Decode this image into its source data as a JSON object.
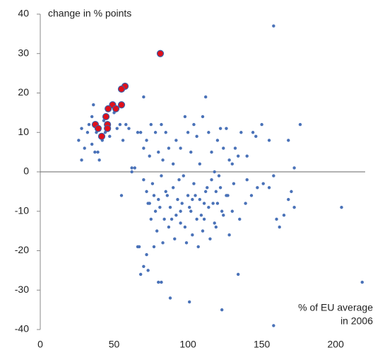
{
  "chart_data": {
    "type": "scatter",
    "annotations": [
      "change in % points",
      "% of EU average",
      "in 2006"
    ],
    "xlim": [
      0,
      220
    ],
    "ylim": [
      -40,
      40
    ],
    "xticks": [
      0,
      50,
      100,
      150,
      200
    ],
    "yticks": [
      -40,
      -30,
      -20,
      -10,
      0,
      10,
      20,
      30,
      40
    ],
    "series": [
      {
        "color": "#4a72b8",
        "size": 2.2,
        "stroke": "none",
        "x": [
          26,
          28,
          30,
          33,
          35,
          36,
          38,
          40,
          42,
          43,
          44,
          32,
          37,
          45,
          47,
          50,
          52,
          54,
          56,
          58,
          60,
          28,
          35,
          39,
          62,
          64,
          66,
          68,
          70,
          72,
          74,
          70,
          55,
          62,
          67,
          66,
          75,
          78,
          80,
          82,
          83,
          85,
          87,
          90,
          92,
          95,
          98,
          100,
          102,
          104,
          106,
          108,
          110,
          112,
          114,
          116,
          118,
          120,
          122,
          124,
          126,
          128,
          130,
          132,
          134,
          136,
          140,
          144,
          146,
          150,
          155,
          158,
          168,
          172,
          176,
          204,
          218,
          70,
          72,
          74,
          76,
          78,
          80,
          82,
          84,
          86,
          88,
          90,
          92,
          94,
          96,
          98,
          100,
          102,
          104,
          106,
          108,
          110,
          112,
          114,
          116,
          118,
          120,
          122,
          124,
          126,
          128,
          130,
          75,
          79,
          83,
          87,
          91,
          95,
          99,
          103,
          107,
          111,
          115,
          119,
          123,
          127,
          131,
          135,
          139,
          143,
          147,
          151,
          155,
          158,
          160,
          162,
          165,
          168,
          170,
          172,
          140,
          77,
          72,
          70,
          68,
          73,
          80,
          82,
          88,
          101,
          123,
          134,
          158,
          85,
          93,
          97,
          101,
          105,
          109,
          113,
          117,
          121,
          89,
          81,
          77,
          73,
          95,
          103,
          111,
          119
        ],
        "values": [
          8,
          11,
          6,
          12,
          14,
          17,
          10,
          3,
          8,
          13,
          10,
          10,
          5,
          12,
          9,
          15,
          11,
          12,
          8,
          12,
          11,
          3,
          7,
          5,
          1,
          1,
          10,
          10,
          19,
          8,
          4,
          6,
          -6,
          0,
          -19,
          -19,
          12,
          10,
          5,
          12,
          3,
          10,
          6,
          2,
          8,
          6,
          14,
          10,
          5,
          12,
          9,
          2,
          14,
          19,
          10,
          5,
          0,
          8,
          11,
          6,
          11,
          3,
          2,
          6,
          4,
          10,
          4,
          10,
          9,
          12,
          8,
          37,
          8,
          1,
          12,
          -9,
          -28,
          -2,
          -5,
          -8,
          -3,
          -10,
          -7,
          -1,
          -12,
          -6,
          -9,
          -4,
          -11,
          -2,
          -8,
          -14,
          -6,
          -10,
          -3,
          -12,
          -7,
          -15,
          -5,
          -9,
          -2,
          -13,
          -8,
          -4,
          -11,
          -6,
          -16,
          -10,
          -12,
          -15,
          -18,
          -14,
          -17,
          -13,
          -18,
          -16,
          -19,
          -12,
          -17,
          -14,
          -10,
          -6,
          -3,
          -12,
          -8,
          -6,
          -4,
          -3,
          -4,
          -1,
          -12,
          -14,
          -11,
          -7,
          -5,
          -9,
          -2,
          -19,
          -21,
          -24,
          -26,
          -25,
          -28,
          -28,
          -32,
          -33,
          -35,
          -26,
          -39,
          -5,
          -7,
          -1,
          -9,
          -6,
          -11,
          -4,
          -8,
          -1,
          -12,
          -9,
          -6,
          -8,
          -10,
          -7,
          -8,
          -5
        ]
      },
      {
        "color": "#e0101a",
        "size": 4.5,
        "stroke": "#3a5fa8",
        "x": [
          81.3,
          57.4,
          55,
          55,
          49,
          51.2,
          46,
          44.5,
          45.5,
          45.5,
          37.3,
          39.2,
          41.6
        ],
        "values": [
          30,
          21.7,
          21,
          17,
          17,
          16,
          16,
          14,
          12,
          11,
          12,
          11,
          9
        ]
      }
    ]
  }
}
